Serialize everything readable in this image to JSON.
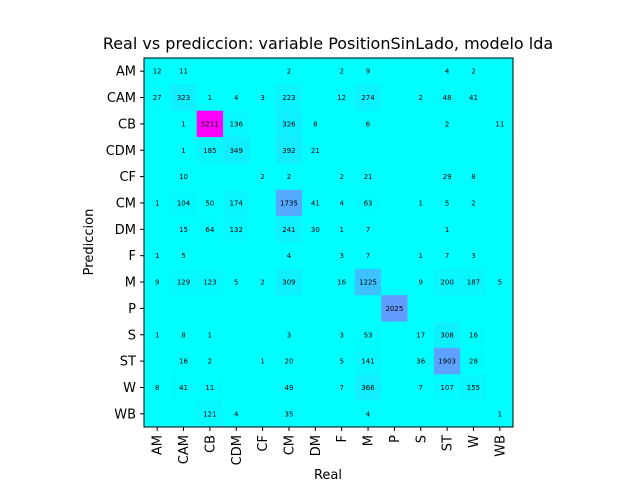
{
  "chart_data": {
    "type": "heatmap",
    "title": "Real vs prediccion: variable PositionSinLado, modelo lda",
    "xlabel": "Real",
    "ylabel": "Prediccion",
    "x_categories": [
      "AM",
      "CAM",
      "CB",
      "CDM",
      "CF",
      "CM",
      "DM",
      "F",
      "M",
      "P",
      "S",
      "ST",
      "W",
      "WB"
    ],
    "y_categories": [
      "AM",
      "CAM",
      "CB",
      "CDM",
      "CF",
      "CM",
      "DM",
      "F",
      "M",
      "P",
      "S",
      "ST",
      "W",
      "WB"
    ],
    "colormap": "cool",
    "colors": {
      "low": "#00ffff",
      "high": "#ff00ff"
    },
    "value_range": [
      0,
      5211
    ],
    "values": [
      [
        12,
        11,
        null,
        null,
        null,
        2,
        null,
        2,
        9,
        null,
        null,
        4,
        2,
        null
      ],
      [
        27,
        323,
        1,
        4,
        3,
        223,
        null,
        12,
        274,
        null,
        2,
        48,
        41,
        null
      ],
      [
        null,
        1,
        5211,
        136,
        null,
        326,
        8,
        null,
        6,
        null,
        null,
        2,
        null,
        11
      ],
      [
        null,
        1,
        185,
        349,
        null,
        392,
        21,
        null,
        null,
        null,
        null,
        null,
        null,
        null
      ],
      [
        null,
        10,
        null,
        null,
        2,
        2,
        null,
        2,
        21,
        null,
        null,
        29,
        8,
        null
      ],
      [
        1,
        104,
        50,
        174,
        null,
        1735,
        41,
        4,
        63,
        null,
        1,
        5,
        2,
        null
      ],
      [
        null,
        15,
        64,
        132,
        null,
        241,
        30,
        1,
        7,
        null,
        null,
        1,
        null,
        null
      ],
      [
        1,
        5,
        null,
        null,
        null,
        4,
        null,
        3,
        7,
        null,
        1,
        7,
        3,
        null
      ],
      [
        9,
        129,
        123,
        5,
        2,
        309,
        null,
        16,
        1225,
        null,
        9,
        200,
        187,
        5
      ],
      [
        null,
        null,
        null,
        null,
        null,
        null,
        null,
        null,
        null,
        2025,
        null,
        null,
        null,
        null
      ],
      [
        1,
        8,
        1,
        null,
        null,
        3,
        null,
        3,
        53,
        null,
        17,
        308,
        16,
        null
      ],
      [
        null,
        16,
        2,
        null,
        1,
        20,
        null,
        5,
        141,
        null,
        36,
        1903,
        28,
        null
      ],
      [
        8,
        41,
        11,
        null,
        null,
        49,
        null,
        7,
        366,
        null,
        7,
        107,
        155,
        null
      ],
      [
        null,
        null,
        121,
        4,
        null,
        35,
        null,
        null,
        4,
        null,
        null,
        null,
        null,
        1
      ]
    ]
  }
}
